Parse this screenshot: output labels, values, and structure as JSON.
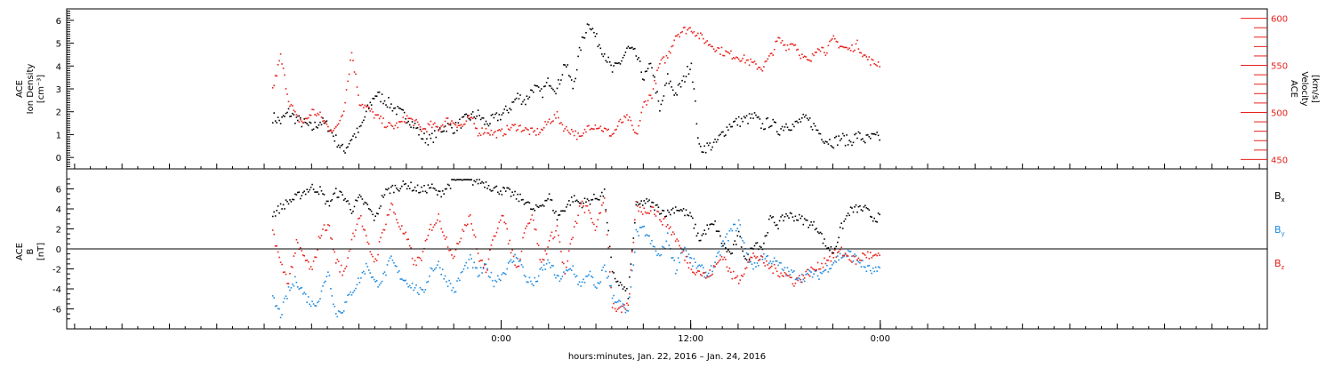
{
  "colors": {
    "black": "#000000",
    "red": "#e8201c",
    "blue": "#1f8be0",
    "axis": "#000000"
  },
  "xaxis": {
    "label": "hours:minutes, Jan. 22, 2016 – Jan. 24, 2016",
    "range_hours": [
      -27.5,
      48.5
    ],
    "major_ticks": [
      {
        "hours": 0,
        "label": "0:00"
      },
      {
        "hours": 12,
        "label": "12:00"
      },
      {
        "hours": 24,
        "label": "0:00"
      }
    ]
  },
  "chart_data": [
    {
      "type": "scatter",
      "panel": "top",
      "ylabel_left": [
        "ACE",
        "Ion Density",
        "[cm⁻³]"
      ],
      "ylabel_right": [
        "ACE",
        "Velocity",
        "[km/s]"
      ],
      "ylim_left": [
        -0.5,
        6.5
      ],
      "ylim_right": [
        440,
        610
      ],
      "left_ticks": [
        "0",
        "1",
        "2",
        "3",
        "4",
        "5",
        "6"
      ],
      "right_ticks": [
        "450",
        "500",
        "550",
        "600"
      ],
      "series": [
        {
          "axis": "left",
          "color": "#000000",
          "x_hours": [
            -14.5,
            -14.0,
            -13.5,
            -13.0,
            -12.5,
            -12.0,
            -11.5,
            -11.0,
            -10.5,
            -10.0,
            -9.5,
            -9.0,
            -8.5,
            -8.0,
            -7.5,
            -7.0,
            -6.5,
            -6.0,
            -5.5,
            -5.0,
            -4.5,
            -4.0,
            -3.5,
            -3.0,
            -2.5,
            -2.0,
            -1.5,
            -1.0,
            -0.5,
            0.0,
            0.5,
            1.0,
            1.5,
            2.0,
            2.5,
            3.0,
            3.5,
            4.0,
            4.5,
            5.0,
            5.5,
            6.0,
            6.5,
            7.0,
            7.5,
            8.0,
            8.5,
            9.0,
            9.5,
            10.0,
            10.5,
            11.0,
            11.5,
            12.0,
            12.5,
            13.0,
            13.5,
            14.0,
            14.5,
            15.0,
            15.5,
            16.0,
            16.5,
            17.0,
            17.5,
            18.0,
            18.5,
            19.0,
            19.5,
            20.0,
            20.5,
            21.0,
            21.5,
            22.0,
            22.5,
            23.0,
            23.5
          ],
          "values": [
            1.8,
            1.6,
            2.0,
            1.7,
            1.5,
            1.3,
            1.6,
            1.4,
            0.8,
            0.3,
            0.9,
            1.2,
            2.1,
            2.8,
            2.6,
            2.3,
            2.0,
            1.8,
            1.4,
            0.9,
            0.8,
            1.2,
            1.4,
            1.3,
            1.6,
            1.8,
            1.9,
            1.5,
            1.7,
            1.9,
            2.2,
            2.7,
            2.5,
            3.1,
            2.8,
            3.4,
            3.0,
            4.2,
            3.1,
            4.9,
            6.0,
            5.2,
            4.6,
            3.8,
            4.2,
            4.8,
            4.5,
            3.5,
            4.1,
            2.0,
            3.5,
            2.8,
            3.4,
            4.2,
            0.4,
            0.5,
            0.6,
            1.1,
            1.5,
            1.6,
            1.7,
            1.8,
            1.4,
            1.6,
            1.2,
            1.5,
            1.4,
            1.7,
            1.6,
            1.2,
            0.8,
            0.7,
            0.9,
            0.7,
            1.0,
            0.8,
            0.9
          ]
        },
        {
          "axis": "right",
          "color": "#e8201c",
          "x_hours": [
            -14.5,
            -14.0,
            -13.5,
            -13.0,
            -12.5,
            -12.0,
            -11.5,
            -11.0,
            -10.5,
            -10.0,
            -9.5,
            -9.0,
            -8.5,
            -8.0,
            -7.5,
            -7.0,
            -6.5,
            -6.0,
            -5.5,
            -5.0,
            -4.5,
            -4.0,
            -3.5,
            -3.0,
            -2.5,
            -2.0,
            -1.5,
            -1.0,
            -0.5,
            0.0,
            0.5,
            1.0,
            1.5,
            2.0,
            2.5,
            3.0,
            3.5,
            4.0,
            4.5,
            5.0,
            5.5,
            6.0,
            6.5,
            7.0,
            7.5,
            8.0,
            8.5,
            9.0,
            9.5,
            10.0,
            10.5,
            11.0,
            11.5,
            12.0,
            12.5,
            13.0,
            13.5,
            14.0,
            14.5,
            15.0,
            15.5,
            16.0,
            16.5,
            17.0,
            17.5,
            18.0,
            18.5,
            19.0,
            19.5,
            20.0,
            20.5,
            21.0,
            21.5,
            22.0,
            22.5,
            23.0,
            23.5
          ],
          "values": [
            525,
            560,
            515,
            495,
            490,
            502,
            497,
            485,
            482,
            505,
            565,
            512,
            505,
            497,
            490,
            485,
            488,
            495,
            490,
            482,
            487,
            484,
            492,
            490,
            486,
            495,
            480,
            482,
            478,
            479,
            484,
            486,
            482,
            479,
            481,
            492,
            497,
            483,
            481,
            472,
            487,
            487,
            482,
            477,
            490,
            495,
            475,
            510,
            520,
            552,
            560,
            583,
            588,
            590,
            582,
            575,
            570,
            565,
            562,
            560,
            556,
            551,
            548,
            560,
            578,
            571,
            575,
            560,
            553,
            572,
            566,
            578,
            571,
            567,
            573,
            560,
            553
          ]
        }
      ]
    },
    {
      "type": "scatter",
      "panel": "bottom",
      "ylabel_left": [
        "ACE",
        "B",
        "[nT]"
      ],
      "ylim": [
        -8,
        8
      ],
      "left_ticks": [
        "-6",
        "-4",
        "-2",
        "0",
        "2",
        "4",
        "6"
      ],
      "legend": [
        {
          "label": "B",
          "sub": "x",
          "color": "#000000"
        },
        {
          "label": "B",
          "sub": "y",
          "color": "#1f8be0"
        },
        {
          "label": "B",
          "sub": "z",
          "color": "#e8201c"
        }
      ],
      "series": [
        {
          "name": "Bx",
          "color": "#000000",
          "x_hours": [
            -14.5,
            -14.0,
            -13.5,
            -13.0,
            -12.5,
            -12.0,
            -11.5,
            -11.0,
            -10.5,
            -10.0,
            -9.5,
            -9.0,
            -8.5,
            -8.0,
            -7.5,
            -7.0,
            -6.5,
            -6.0,
            -5.5,
            -5.0,
            -4.5,
            -4.0,
            -3.5,
            -3.0,
            -2.5,
            -2.0,
            -1.5,
            -1.0,
            -0.5,
            0.0,
            0.5,
            1.0,
            1.5,
            2.0,
            2.5,
            3.0,
            3.5,
            4.0,
            4.5,
            5.0,
            5.5,
            6.0,
            6.5,
            7.0,
            7.5,
            8.0,
            8.5,
            9.0,
            9.5,
            10.0,
            10.5,
            11.0,
            11.5,
            12.0,
            12.5,
            13.0,
            13.5,
            14.0,
            14.5,
            15.0,
            15.5,
            16.0,
            16.5,
            17.0,
            17.5,
            18.0,
            18.5,
            19.0,
            19.5,
            20.0,
            20.5,
            21.0,
            21.5,
            22.0,
            22.5,
            23.0,
            23.5
          ],
          "values": [
            3.5,
            4.2,
            4.8,
            5.2,
            5.8,
            6.2,
            5.9,
            4.5,
            5.7,
            5.3,
            4.0,
            5.1,
            4.3,
            3.0,
            5.5,
            6.1,
            6.3,
            6.5,
            6.1,
            5.9,
            6.3,
            5.5,
            6.2,
            6.9,
            7.1,
            6.8,
            6.9,
            6.6,
            6.1,
            5.9,
            5.7,
            5.2,
            4.9,
            3.8,
            4.5,
            5.3,
            3.2,
            4.2,
            5.1,
            4.6,
            4.9,
            5.2,
            5.6,
            -2.5,
            -3.5,
            -4.5,
            4.2,
            4.8,
            4.5,
            4.0,
            3.6,
            4.2,
            3.8,
            3.2,
            1.0,
            2.1,
            2.5,
            0.5,
            -0.5,
            1.4,
            -1.2,
            0.8,
            0.2,
            3.1,
            2.5,
            3.5,
            3.3,
            3.0,
            2.6,
            2.2,
            0.4,
            -0.2,
            2.2,
            3.8,
            4.1,
            4.0,
            3.2
          ]
        },
        {
          "name": "By",
          "color": "#1f8be0",
          "x_hours": [
            -14.5,
            -14.0,
            -13.5,
            -13.0,
            -12.5,
            -12.0,
            -11.5,
            -11.0,
            -10.5,
            -10.0,
            -9.5,
            -9.0,
            -8.5,
            -8.0,
            -7.5,
            -7.0,
            -6.5,
            -6.0,
            -5.5,
            -5.0,
            -4.5,
            -4.0,
            -3.5,
            -3.0,
            -2.5,
            -2.0,
            -1.5,
            -1.0,
            -0.5,
            0.0,
            0.5,
            1.0,
            1.5,
            2.0,
            2.5,
            3.0,
            3.5,
            4.0,
            4.5,
            5.0,
            5.5,
            6.0,
            6.5,
            7.0,
            7.5,
            8.0,
            8.5,
            9.0,
            9.5,
            10.0,
            10.5,
            11.0,
            11.5,
            12.0,
            12.5,
            13.0,
            13.5,
            14.0,
            14.5,
            15.0,
            15.5,
            16.0,
            16.5,
            17.0,
            17.5,
            18.0,
            18.5,
            19.0,
            19.5,
            20.0,
            20.5,
            21.0,
            21.5,
            22.0,
            22.5,
            23.0,
            23.5
          ],
          "values": [
            -5.0,
            -6.5,
            -4.2,
            -3.0,
            -4.5,
            -5.5,
            -4.8,
            -2.0,
            -6.5,
            -5.8,
            -4.2,
            -3.0,
            -1.5,
            -3.5,
            -2.8,
            -1.0,
            -2.5,
            -3.2,
            -3.8,
            -4.5,
            -2.0,
            -1.5,
            -3.0,
            -4.2,
            -2.2,
            -1.0,
            -2.5,
            -1.8,
            -3.2,
            -2.5,
            -1.5,
            -0.5,
            -2.8,
            -3.5,
            -2.2,
            -1.2,
            -3.0,
            -2.5,
            -1.8,
            -3.8,
            -2.2,
            -4.2,
            -1.5,
            -4.5,
            -5.5,
            -6.5,
            1.5,
            2.0,
            0.5,
            -0.8,
            1.2,
            -2.0,
            0.4,
            -1.2,
            -1.8,
            -2.5,
            -1.5,
            0.5,
            1.8,
            2.6,
            -0.5,
            -1.8,
            -0.6,
            -1.0,
            -1.5,
            -2.2,
            -2.5,
            -2.8,
            -2.4,
            -2.6,
            -2.0,
            -1.2,
            -0.6,
            -0.4,
            -1.0,
            -1.8,
            -2.2
          ]
        },
        {
          "name": "Bz",
          "color": "#e8201c",
          "x_hours": [
            -14.5,
            -14.0,
            -13.5,
            -13.0,
            -12.5,
            -12.0,
            -11.5,
            -11.0,
            -10.5,
            -10.0,
            -9.5,
            -9.0,
            -8.5,
            -8.0,
            -7.5,
            -7.0,
            -6.5,
            -6.0,
            -5.5,
            -5.0,
            -4.5,
            -4.0,
            -3.5,
            -3.0,
            -2.5,
            -2.0,
            -1.5,
            -1.0,
            -0.5,
            0.0,
            0.5,
            1.0,
            1.5,
            2.0,
            2.5,
            3.0,
            3.5,
            4.0,
            4.5,
            5.0,
            5.5,
            6.0,
            6.5,
            7.0,
            7.5,
            8.0,
            8.5,
            9.0,
            9.5,
            10.0,
            10.5,
            11.0,
            11.5,
            12.0,
            12.5,
            13.0,
            13.5,
            14.0,
            14.5,
            15.0,
            15.5,
            16.0,
            16.5,
            17.0,
            17.5,
            18.0,
            18.5,
            19.0,
            19.5,
            20.0,
            20.5,
            21.0,
            21.5,
            22.0,
            22.5,
            23.0,
            23.5
          ],
          "values": [
            2.0,
            -1.5,
            -3.2,
            0.5,
            -0.8,
            -2.2,
            1.5,
            2.6,
            -1.0,
            -2.5,
            1.0,
            3.5,
            0.5,
            -1.2,
            2.0,
            4.5,
            2.5,
            1.0,
            -1.5,
            -0.5,
            2.2,
            3.2,
            1.0,
            -0.8,
            2.0,
            3.5,
            -0.5,
            -2.2,
            1.2,
            3.8,
            0.5,
            -2.0,
            2.5,
            3.2,
            -1.5,
            0.8,
            2.2,
            -2.5,
            1.5,
            4.5,
            3.8,
            2.0,
            5.5,
            -5.5,
            -6.2,
            -5.8,
            4.5,
            3.8,
            4.2,
            3.2,
            2.5,
            1.2,
            -0.5,
            -1.8,
            -2.2,
            -2.8,
            -1.8,
            -0.5,
            -2.5,
            -3.0,
            -1.5,
            -0.5,
            -1.2,
            -1.8,
            -2.2,
            -2.5,
            -3.2,
            -2.8,
            -2.2,
            -1.8,
            -1.0,
            -0.6,
            -0.2,
            -0.8,
            -1.2,
            -0.4,
            -0.8
          ]
        }
      ]
    }
  ]
}
